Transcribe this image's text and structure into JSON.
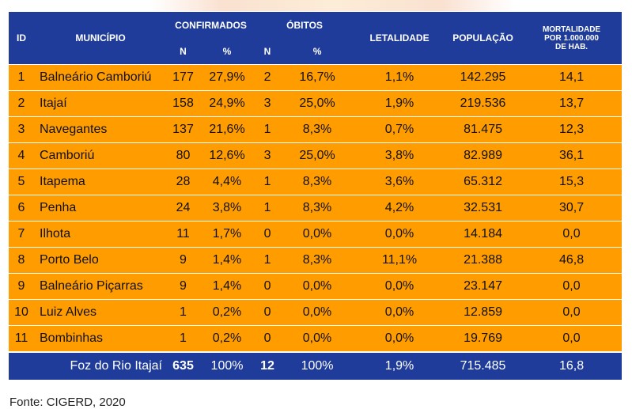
{
  "headers": {
    "id": "ID",
    "municipio": "MUNICÍPIO",
    "confirmados": "CONFIRMADOS",
    "obitos": "ÓBITOS",
    "letalidade": "LETALIDADE",
    "populacao": "POPULAÇÃO",
    "mortalidade_line1": "MORTALIDADE",
    "mortalidade_line2": "POR 1.000.000",
    "mortalidade_line3": "DE HAB.",
    "n": "N",
    "pct": "%"
  },
  "rows": [
    {
      "id": "1",
      "municipio": "Balneário Camboriú",
      "conf_n": "177",
      "conf_pct": "27,9%",
      "obitos_n": "2",
      "obitos_pct": "16,7%",
      "letalidade": "1,1%",
      "populacao": "142.295",
      "mortalidade": "14,1"
    },
    {
      "id": "2",
      "municipio": "Itajaí",
      "conf_n": "158",
      "conf_pct": "24,9%",
      "obitos_n": "3",
      "obitos_pct": "25,0%",
      "letalidade": "1,9%",
      "populacao": "219.536",
      "mortalidade": "13,7"
    },
    {
      "id": "3",
      "municipio": "Navegantes",
      "conf_n": "137",
      "conf_pct": "21,6%",
      "obitos_n": "1",
      "obitos_pct": "8,3%",
      "letalidade": "0,7%",
      "populacao": "81.475",
      "mortalidade": "12,3"
    },
    {
      "id": "4",
      "municipio": "Camboriú",
      "conf_n": "80",
      "conf_pct": "12,6%",
      "obitos_n": "3",
      "obitos_pct": "25,0%",
      "letalidade": "3,8%",
      "populacao": "82.989",
      "mortalidade": "36,1"
    },
    {
      "id": "5",
      "municipio": "Itapema",
      "conf_n": "28",
      "conf_pct": "4,4%",
      "obitos_n": "1",
      "obitos_pct": "8,3%",
      "letalidade": "3,6%",
      "populacao": "65.312",
      "mortalidade": "15,3"
    },
    {
      "id": "6",
      "municipio": "Penha",
      "conf_n": "24",
      "conf_pct": "3,8%",
      "obitos_n": "1",
      "obitos_pct": "8,3%",
      "letalidade": "4,2%",
      "populacao": "32.531",
      "mortalidade": "30,7"
    },
    {
      "id": "7",
      "municipio": "Ilhota",
      "conf_n": "11",
      "conf_pct": "1,7%",
      "obitos_n": "0",
      "obitos_pct": "0,0%",
      "letalidade": "0,0%",
      "populacao": "14.184",
      "mortalidade": "0,0"
    },
    {
      "id": "8",
      "municipio": "Porto Belo",
      "conf_n": "9",
      "conf_pct": "1,4%",
      "obitos_n": "1",
      "obitos_pct": "8,3%",
      "letalidade": "11,1%",
      "populacao": "21.388",
      "mortalidade": "46,8"
    },
    {
      "id": "9",
      "municipio": "Balneário Piçarras",
      "conf_n": "9",
      "conf_pct": "1,4%",
      "obitos_n": "0",
      "obitos_pct": "0,0%",
      "letalidade": "0,0%",
      "populacao": "23.147",
      "mortalidade": "0,0"
    },
    {
      "id": "10",
      "municipio": "Luiz Alves",
      "conf_n": "1",
      "conf_pct": "0,2%",
      "obitos_n": "0",
      "obitos_pct": "0,0%",
      "letalidade": "0,0%",
      "populacao": "12.859",
      "mortalidade": "0,0"
    },
    {
      "id": "11",
      "municipio": "Bombinhas",
      "conf_n": "1",
      "conf_pct": "0,2%",
      "obitos_n": "0",
      "obitos_pct": "0,0%",
      "letalidade": "0,0%",
      "populacao": "19.769",
      "mortalidade": "0,0"
    }
  ],
  "total": {
    "label": "Foz do Rio Itajaí",
    "conf_n": "635",
    "conf_pct": "100%",
    "obitos_n": "12",
    "obitos_pct": "100%",
    "letalidade": "1,9%",
    "populacao": "715.485",
    "mortalidade": "16,8"
  },
  "source": "Fonte: CIGERD, 2020",
  "colors": {
    "header_bg": "#1f3c9a",
    "row_bg": "#ff9c00",
    "header_text": "#ffffff"
  }
}
